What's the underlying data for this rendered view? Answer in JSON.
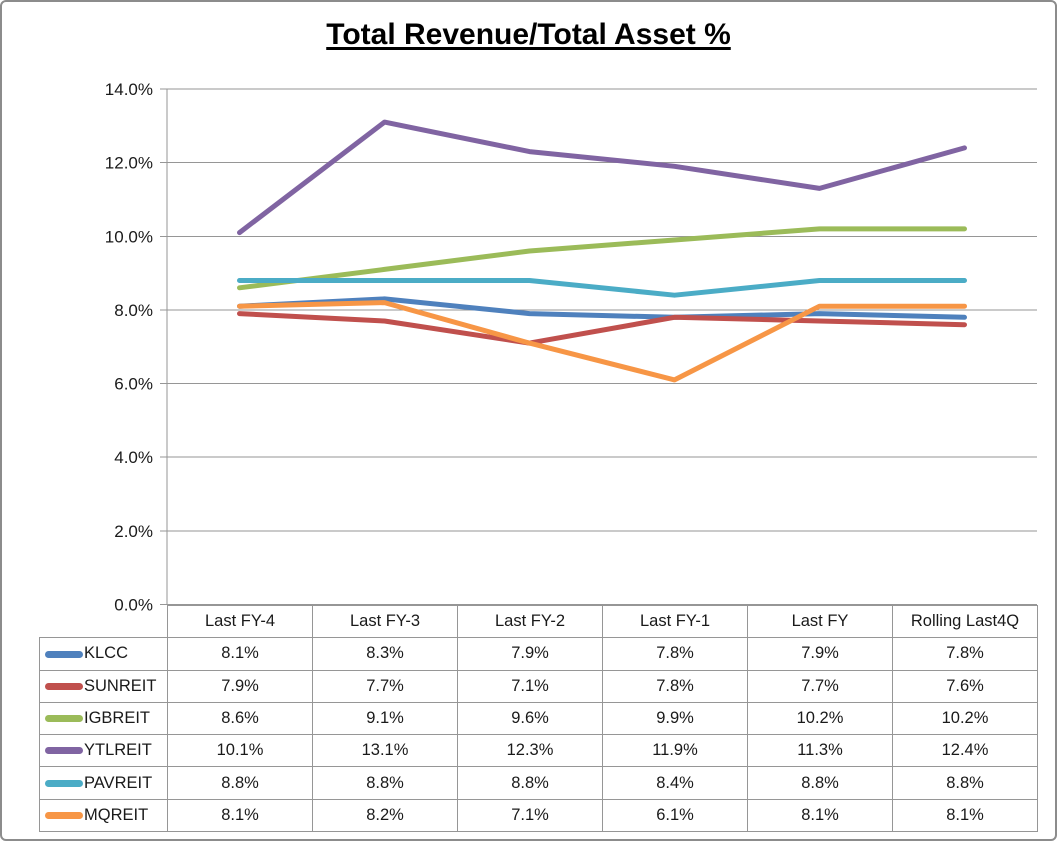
{
  "title": "Total Revenue/Total Asset %",
  "chart_data": {
    "type": "line",
    "title": "Total Revenue/Total Asset %",
    "categories": [
      "Last FY-4",
      "Last FY-3",
      "Last FY-2",
      "Last FY-1",
      "Last FY",
      "Rolling Last4Q"
    ],
    "series": [
      {
        "name": "KLCC",
        "color": "#4F81BD",
        "values": [
          8.1,
          8.3,
          7.9,
          7.8,
          7.9,
          7.8
        ]
      },
      {
        "name": "SUNREIT",
        "color": "#C0504D",
        "values": [
          7.9,
          7.7,
          7.1,
          7.8,
          7.7,
          7.6
        ]
      },
      {
        "name": "IGBREIT",
        "color": "#9BBB59",
        "values": [
          8.6,
          9.1,
          9.6,
          9.9,
          10.2,
          10.2
        ]
      },
      {
        "name": "YTLREIT",
        "color": "#8064A2",
        "values": [
          10.1,
          13.1,
          12.3,
          11.9,
          11.3,
          12.4
        ]
      },
      {
        "name": "PAVREIT",
        "color": "#4BACC6",
        "values": [
          8.8,
          8.8,
          8.8,
          8.4,
          8.8,
          8.8
        ]
      },
      {
        "name": "MQREIT",
        "color": "#F79646",
        "values": [
          8.1,
          8.2,
          7.1,
          6.1,
          8.1,
          8.1
        ]
      }
    ],
    "table_values": [
      [
        "8.1%",
        "8.3%",
        "7.9%",
        "7.8%",
        "7.9%",
        "7.8%"
      ],
      [
        "7.9%",
        "7.7%",
        "7.1%",
        "7.8%",
        "7.7%",
        "7.6%"
      ],
      [
        "8.6%",
        "9.1%",
        "9.6%",
        "9.9%",
        "10.2%",
        "10.2%"
      ],
      [
        "10.1%",
        "13.1%",
        "12.3%",
        "11.9%",
        "11.3%",
        "12.4%"
      ],
      [
        "8.8%",
        "8.8%",
        "8.8%",
        "8.4%",
        "8.8%",
        "8.8%"
      ],
      [
        "8.1%",
        "8.2%",
        "7.1%",
        "6.1%",
        "8.1%",
        "8.1%"
      ]
    ],
    "y_tick_labels": [
      "14.0%",
      "12.0%",
      "10.0%",
      "8.0%",
      "6.0%",
      "4.0%",
      "2.0%",
      "0.0%"
    ],
    "ylim": [
      0,
      14
    ],
    "y_step": 2,
    "grid": true,
    "legend_position": "left-of-data-table",
    "value_format": "percent-1dp"
  },
  "colors": {
    "grid": "#969696",
    "axis": "#969696",
    "table_border": "#969696",
    "frame_border": "#8C8C8C",
    "text": "#1A1A1A",
    "title_text": "#000000"
  }
}
